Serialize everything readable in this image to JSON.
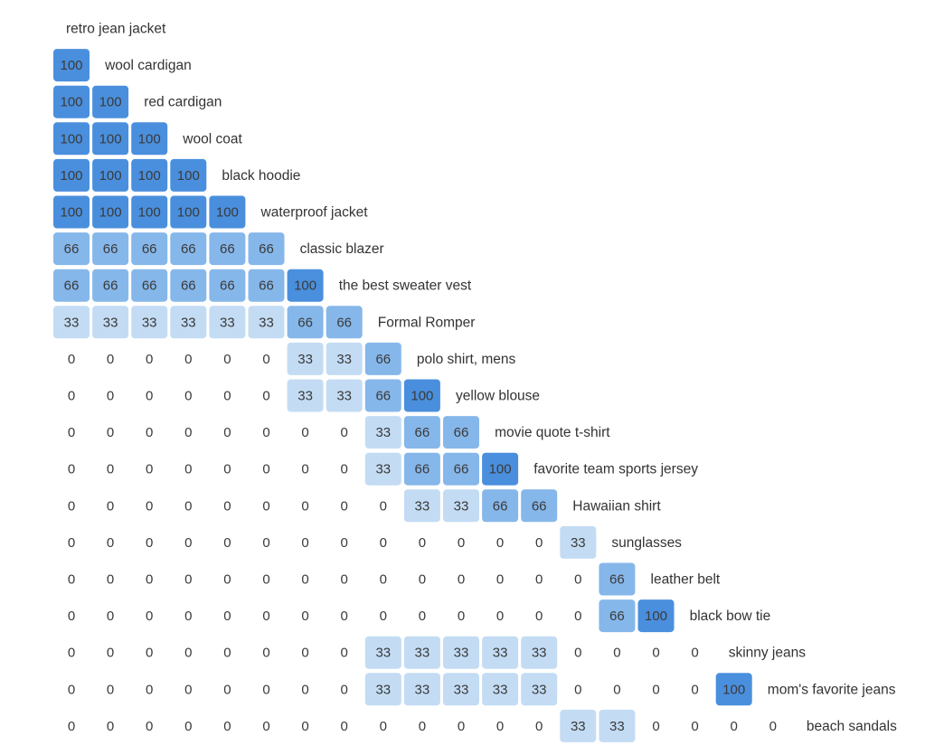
{
  "chart_data": {
    "type": "heatmap",
    "layout": "lower-triangular similarity matrix",
    "items": [
      "retro jean jacket",
      "wool cardigan",
      "red cardigan",
      "wool coat",
      "black hoodie",
      "waterproof jacket",
      "classic blazer",
      "the best sweater vest",
      "Formal Romper",
      "polo shirt, mens",
      "yellow blouse",
      "movie quote t-shirt",
      "favorite team sports jersey",
      "Hawaiian shirt",
      "sunglasses",
      "leather belt",
      "black bow tie",
      "skinny jeans",
      "mom's favorite jeans",
      "beach sandals"
    ],
    "values": [
      [],
      [
        100
      ],
      [
        100,
        100
      ],
      [
        100,
        100,
        100
      ],
      [
        100,
        100,
        100,
        100
      ],
      [
        100,
        100,
        100,
        100,
        100
      ],
      [
        66,
        66,
        66,
        66,
        66,
        66
      ],
      [
        66,
        66,
        66,
        66,
        66,
        66,
        100
      ],
      [
        33,
        33,
        33,
        33,
        33,
        33,
        66,
        66
      ],
      [
        0,
        0,
        0,
        0,
        0,
        0,
        33,
        33,
        66
      ],
      [
        0,
        0,
        0,
        0,
        0,
        0,
        33,
        33,
        66,
        100
      ],
      [
        0,
        0,
        0,
        0,
        0,
        0,
        0,
        0,
        33,
        66,
        66
      ],
      [
        0,
        0,
        0,
        0,
        0,
        0,
        0,
        0,
        33,
        66,
        66,
        100
      ],
      [
        0,
        0,
        0,
        0,
        0,
        0,
        0,
        0,
        0,
        33,
        33,
        66,
        66
      ],
      [
        0,
        0,
        0,
        0,
        0,
        0,
        0,
        0,
        0,
        0,
        0,
        0,
        0,
        33
      ],
      [
        0,
        0,
        0,
        0,
        0,
        0,
        0,
        0,
        0,
        0,
        0,
        0,
        0,
        0,
        66
      ],
      [
        0,
        0,
        0,
        0,
        0,
        0,
        0,
        0,
        0,
        0,
        0,
        0,
        0,
        0,
        66,
        100
      ],
      [
        0,
        0,
        0,
        0,
        0,
        0,
        0,
        0,
        33,
        33,
        33,
        33,
        33,
        0,
        0,
        0,
        0
      ],
      [
        0,
        0,
        0,
        0,
        0,
        0,
        0,
        0,
        33,
        33,
        33,
        33,
        33,
        0,
        0,
        0,
        0,
        100
      ],
      [
        0,
        0,
        0,
        0,
        0,
        0,
        0,
        0,
        0,
        0,
        0,
        0,
        0,
        33,
        33,
        0,
        0,
        0,
        0
      ]
    ],
    "value_range": [
      0,
      100
    ],
    "colors": {
      "v33": "#c3dcf4",
      "v66": "#86b7ea",
      "v100": "#4a8fdd",
      "text": "#3a3a3a",
      "label": "#333333"
    }
  }
}
